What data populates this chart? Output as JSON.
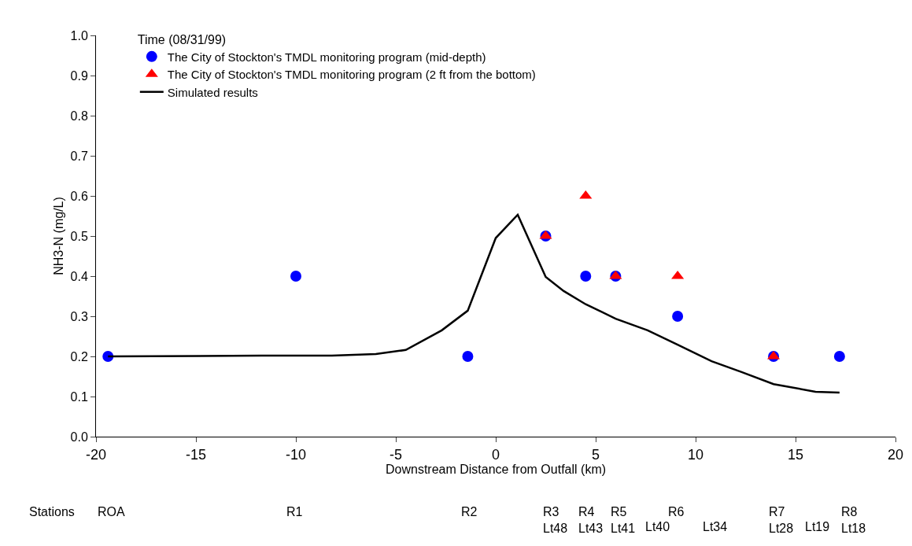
{
  "chart_data": {
    "type": "scatter",
    "xlabel": "Downstream Distance from Outfall (km)",
    "ylabel": "NH3-N (mg/L)",
    "legend_title": "Time (08/31/99)",
    "legend": "top left",
    "grid": false,
    "xlim": [
      -20,
      20
    ],
    "xticks": [
      -20,
      -15,
      -10,
      -5,
      0,
      5,
      10,
      15,
      20
    ],
    "ylim": [
      0,
      1
    ],
    "yticks": [
      {
        "value": 0,
        "label": "0.0"
      },
      {
        "value": 0.1,
        "label": "0.1"
      },
      {
        "value": 0.2,
        "label": "0.2"
      },
      {
        "value": 0.3,
        "label": "0.3"
      },
      {
        "value": 0.4,
        "label": "0.4"
      },
      {
        "value": 0.5,
        "label": "0.5"
      },
      {
        "value": 0.6,
        "label": "0.6"
      },
      {
        "value": 0.7,
        "label": "0.7"
      },
      {
        "value": 0.8,
        "label": "0.8"
      },
      {
        "value": 0.9,
        "label": "0.9"
      },
      {
        "value": 1,
        "label": "1.0"
      }
    ],
    "series": [
      {
        "name": "The City of Stockton's TMDL monitoring program (mid-depth)",
        "marker": "circle",
        "color": "#0000ff",
        "x": [
          -19.4,
          -10.0,
          -1.4,
          2.5,
          4.5,
          6.0,
          9.1,
          13.9,
          17.2
        ],
        "values": [
          0.2,
          0.4,
          0.2,
          0.5,
          0.4,
          0.4,
          0.3,
          0.2,
          0.2
        ]
      },
      {
        "name": "The City of Stockton's TMDL monitoring program (2 ft from the bottom)",
        "marker": "triangle",
        "color": "#ff0000",
        "x": [
          2.5,
          4.5,
          6.0,
          9.1,
          13.9
        ],
        "values": [
          0.5,
          0.6,
          0.4,
          0.4,
          0.2
        ]
      },
      {
        "name": "Simulated results",
        "type": "line",
        "marker": "none",
        "line_style": "solid",
        "color": "#000000",
        "x": [
          -19.4,
          -11.7,
          -8.2,
          -6.0,
          -4.5,
          -2.7,
          -1.4,
          0,
          1.1,
          2.5,
          3.4,
          4.5,
          6.0,
          7.6,
          9.1,
          10.8,
          12.3,
          13.9,
          16.0,
          17.2
        ],
        "values": [
          0.2,
          0.202,
          0.202,
          0.206,
          0.216,
          0.265,
          0.314,
          0.495,
          0.553,
          0.398,
          0.363,
          0.33,
          0.294,
          0.265,
          0.229,
          0.188,
          0.161,
          0.131,
          0.112,
          0.11
        ]
      }
    ],
    "annotations": [
      "Stations",
      "ROA",
      "R1",
      "R2",
      "R3\nLt48",
      "R4\nLt43",
      "R5\nLt41",
      "Lt40",
      "R6",
      "Lt34",
      "R7\nLt28",
      "Lt19",
      "R8\nLt18"
    ]
  }
}
